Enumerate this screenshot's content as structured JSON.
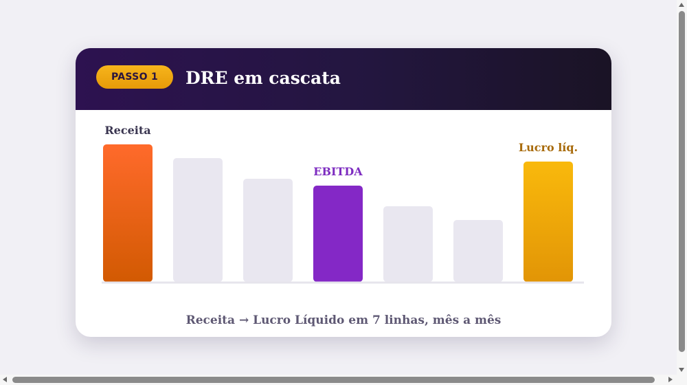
{
  "card": {
    "badge": "PASSO 1",
    "title": "DRE em cascata",
    "caption": "Receita → Lucro Líquido em 7 linhas, mês a mês"
  },
  "colors": {
    "page_bg": "#f1f0f5",
    "header_dark": "#2d1250",
    "badge_gold": "#f7b51c",
    "receita_orange": "#ff6a2b",
    "ebitda_purple": "#8428c6",
    "lucro_gold": "#f7b40a",
    "muted_bar": "#e9e7f0",
    "label_receita": "#3a3550",
    "label_ebitda": "#7d2cc0",
    "label_lucro": "#a86b0c"
  },
  "chart_data": {
    "type": "bar",
    "categories": [
      "",
      "",
      "",
      "",
      "",
      "",
      ""
    ],
    "values": [
      100,
      90,
      75,
      70,
      55,
      45,
      87.5
    ],
    "bar_labels": [
      "Receita",
      "",
      "",
      "EBITDA",
      "",
      "",
      "Lucro líq."
    ],
    "highlight": [
      "receita",
      "muted",
      "muted",
      "ebitda",
      "muted",
      "muted",
      "lucro"
    ],
    "title": "DRE em cascata",
    "xlabel": "",
    "ylabel": "",
    "ylim": [
      0,
      100
    ],
    "grid": false
  }
}
